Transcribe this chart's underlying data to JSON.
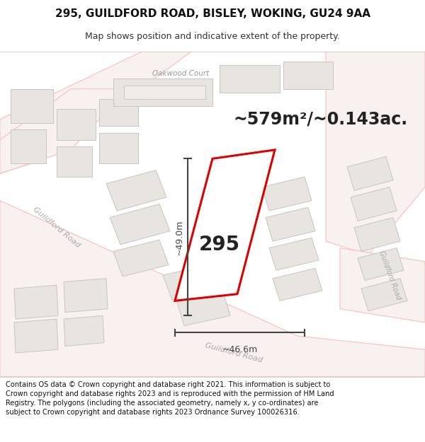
{
  "title_line1": "295, GUILDFORD ROAD, BISLEY, WOKING, GU24 9AA",
  "title_line2": "Map shows position and indicative extent of the property.",
  "footer_text": "Contains OS data © Crown copyright and database right 2021. This information is subject to Crown copyright and database rights 2023 and is reproduced with the permission of HM Land Registry. The polygons (including the associated geometry, namely x, y co-ordinates) are subject to Crown copyright and database rights 2023 Ordnance Survey 100026316.",
  "area_label": "~579m²/~0.143ac.",
  "property_number": "295",
  "dim_height": "~49.0m",
  "dim_width": "~46.6m",
  "map_bg": "#f7f5f2",
  "bld_fill": "#e8e4e0",
  "bld_edge": "#c8c4c0",
  "road_outline": "#f5c0c0",
  "road_fill": "#f9f0f0",
  "highlight_color": "#dd0000",
  "road_label_color": "#aaaaaa",
  "dim_color": "#444444",
  "text_dark": "#222222",
  "oakwood_label_color": "#999999"
}
